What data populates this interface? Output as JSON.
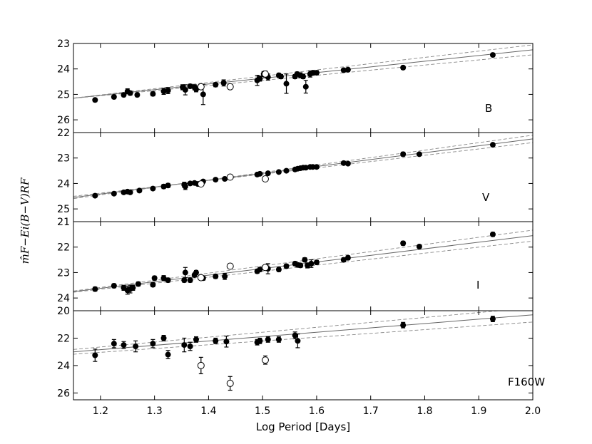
{
  "chart_data": {
    "type": "scatter",
    "xlabel": "Log Period [Days]",
    "ylabel": "m̂F−Ei(B−V)RF",
    "xlim": [
      1.15,
      2.0
    ],
    "x_ticks": [
      "1.2",
      "1.3",
      "1.4",
      "1.5",
      "1.6",
      "1.7",
      "1.8",
      "1.9",
      "2.0"
    ],
    "panels": [
      {
        "band": "B",
        "ylim": [
          26.5,
          23.0
        ],
        "y_ticks": [
          "23",
          "24",
          "25",
          "26"
        ],
        "fit": {
          "x": [
            1.15,
            2.0
          ],
          "y": [
            25.15,
            23.25
          ],
          "spread": 0.1
        },
        "filled": [
          {
            "x": 1.19,
            "y": 25.22,
            "e": 0.07
          },
          {
            "x": 1.225,
            "y": 25.1,
            "e": 0.07
          },
          {
            "x": 1.243,
            "y": 25.02,
            "e": 0.07
          },
          {
            "x": 1.25,
            "y": 24.88,
            "e": 0.1
          },
          {
            "x": 1.255,
            "y": 24.95,
            "e": 0.08
          },
          {
            "x": 1.268,
            "y": 25.02,
            "e": 0.07
          },
          {
            "x": 1.297,
            "y": 24.98,
            "e": 0.08
          },
          {
            "x": 1.317,
            "y": 24.88,
            "e": 0.12
          },
          {
            "x": 1.325,
            "y": 24.85,
            "e": 0.12
          },
          {
            "x": 1.352,
            "y": 24.72,
            "e": 0.1
          },
          {
            "x": 1.357,
            "y": 24.82,
            "e": 0.2
          },
          {
            "x": 1.366,
            "y": 24.68,
            "e": 0.08
          },
          {
            "x": 1.374,
            "y": 24.72,
            "e": 0.1
          },
          {
            "x": 1.377,
            "y": 24.8,
            "e": 0.1
          },
          {
            "x": 1.39,
            "y": 25.0,
            "e": 0.4
          },
          {
            "x": 1.413,
            "y": 24.62,
            "e": 0.08
          },
          {
            "x": 1.428,
            "y": 24.55,
            "e": 0.12
          },
          {
            "x": 1.49,
            "y": 24.45,
            "e": 0.2
          },
          {
            "x": 1.495,
            "y": 24.38,
            "e": 0.1
          },
          {
            "x": 1.502,
            "y": 24.2,
            "e": 0.1
          },
          {
            "x": 1.51,
            "y": 24.32,
            "e": 0.12
          },
          {
            "x": 1.53,
            "y": 24.25,
            "e": 0.08
          },
          {
            "x": 1.534,
            "y": 24.3,
            "e": 0.08
          },
          {
            "x": 1.544,
            "y": 24.58,
            "e": 0.38
          },
          {
            "x": 1.56,
            "y": 24.3,
            "e": 0.08
          },
          {
            "x": 1.564,
            "y": 24.2,
            "e": 0.08
          },
          {
            "x": 1.57,
            "y": 24.25,
            "e": 0.1
          },
          {
            "x": 1.575,
            "y": 24.3,
            "e": 0.08
          },
          {
            "x": 1.58,
            "y": 24.7,
            "e": 0.25
          },
          {
            "x": 1.588,
            "y": 24.2,
            "e": 0.12
          },
          {
            "x": 1.593,
            "y": 24.15,
            "e": 0.08
          },
          {
            "x": 1.6,
            "y": 24.15,
            "e": 0.08
          },
          {
            "x": 1.65,
            "y": 24.05,
            "e": 0.07
          },
          {
            "x": 1.658,
            "y": 24.03,
            "e": 0.07
          },
          {
            "x": 1.76,
            "y": 23.95,
            "e": 0.07
          },
          {
            "x": 1.926,
            "y": 23.45,
            "e": 0.07
          }
        ],
        "open": [
          {
            "x": 1.386,
            "y": 24.7,
            "e": 0.05
          },
          {
            "x": 1.44,
            "y": 24.7,
            "e": 0.07
          },
          {
            "x": 1.505,
            "y": 24.2,
            "e": 0.12
          }
        ]
      },
      {
        "band": "V",
        "ylim": [
          25.5,
          22.0
        ],
        "y_ticks": [
          "22",
          "23",
          "24",
          "25"
        ],
        "fit": {
          "x": [
            1.15,
            2.0
          ],
          "y": [
            24.55,
            22.25
          ],
          "spread": 0.05
        },
        "filled": [
          {
            "x": 1.19,
            "y": 24.48,
            "e": 0.06
          },
          {
            "x": 1.225,
            "y": 24.4,
            "e": 0.06
          },
          {
            "x": 1.243,
            "y": 24.35,
            "e": 0.06
          },
          {
            "x": 1.25,
            "y": 24.32,
            "e": 0.06
          },
          {
            "x": 1.255,
            "y": 24.35,
            "e": 0.06
          },
          {
            "x": 1.272,
            "y": 24.28,
            "e": 0.06
          },
          {
            "x": 1.297,
            "y": 24.2,
            "e": 0.06
          },
          {
            "x": 1.317,
            "y": 24.12,
            "e": 0.08
          },
          {
            "x": 1.325,
            "y": 24.08,
            "e": 0.08
          },
          {
            "x": 1.355,
            "y": 24.05,
            "e": 0.1
          },
          {
            "x": 1.357,
            "y": 24.12,
            "e": 0.12
          },
          {
            "x": 1.366,
            "y": 24.0,
            "e": 0.06
          },
          {
            "x": 1.374,
            "y": 23.98,
            "e": 0.06
          },
          {
            "x": 1.38,
            "y": 24.02,
            "e": 0.06
          },
          {
            "x": 1.39,
            "y": 23.92,
            "e": 0.06
          },
          {
            "x": 1.413,
            "y": 23.85,
            "e": 0.06
          },
          {
            "x": 1.43,
            "y": 23.82,
            "e": 0.06
          },
          {
            "x": 1.49,
            "y": 23.65,
            "e": 0.06
          },
          {
            "x": 1.495,
            "y": 23.62,
            "e": 0.06
          },
          {
            "x": 1.51,
            "y": 23.6,
            "e": 0.06
          },
          {
            "x": 1.53,
            "y": 23.55,
            "e": 0.06
          },
          {
            "x": 1.544,
            "y": 23.5,
            "e": 0.06
          },
          {
            "x": 1.56,
            "y": 23.45,
            "e": 0.06
          },
          {
            "x": 1.565,
            "y": 23.42,
            "e": 0.06
          },
          {
            "x": 1.57,
            "y": 23.4,
            "e": 0.06
          },
          {
            "x": 1.575,
            "y": 23.38,
            "e": 0.06
          },
          {
            "x": 1.58,
            "y": 23.38,
            "e": 0.06
          },
          {
            "x": 1.588,
            "y": 23.35,
            "e": 0.06
          },
          {
            "x": 1.593,
            "y": 23.35,
            "e": 0.06
          },
          {
            "x": 1.6,
            "y": 23.35,
            "e": 0.06
          },
          {
            "x": 1.65,
            "y": 23.2,
            "e": 0.06
          },
          {
            "x": 1.658,
            "y": 23.22,
            "e": 0.06
          },
          {
            "x": 1.76,
            "y": 22.85,
            "e": 0.08
          },
          {
            "x": 1.79,
            "y": 22.85,
            "e": 0.06
          },
          {
            "x": 1.926,
            "y": 22.48,
            "e": 0.06
          }
        ],
        "open": [
          {
            "x": 1.386,
            "y": 24.02,
            "e": 0.05
          },
          {
            "x": 1.44,
            "y": 23.75,
            "e": 0.05
          },
          {
            "x": 1.505,
            "y": 23.82,
            "e": 0.08
          }
        ]
      },
      {
        "band": "I",
        "ylim": [
          24.5,
          21.0
        ],
        "y_ticks": [
          "21",
          "22",
          "23",
          "24"
        ],
        "fit": {
          "x": [
            1.15,
            2.0
          ],
          "y": [
            23.75,
            21.55
          ],
          "spread": 0.12
        },
        "filled": [
          {
            "x": 1.19,
            "y": 23.65,
            "e": 0.08
          },
          {
            "x": 1.225,
            "y": 23.52,
            "e": 0.08
          },
          {
            "x": 1.243,
            "y": 23.6,
            "e": 0.1
          },
          {
            "x": 1.25,
            "y": 23.7,
            "e": 0.15
          },
          {
            "x": 1.255,
            "y": 23.65,
            "e": 0.15
          },
          {
            "x": 1.26,
            "y": 23.6,
            "e": 0.1
          },
          {
            "x": 1.27,
            "y": 23.45,
            "e": 0.08
          },
          {
            "x": 1.297,
            "y": 23.48,
            "e": 0.08
          },
          {
            "x": 1.3,
            "y": 23.22,
            "e": 0.08
          },
          {
            "x": 1.317,
            "y": 23.22,
            "e": 0.1
          },
          {
            "x": 1.325,
            "y": 23.3,
            "e": 0.08
          },
          {
            "x": 1.355,
            "y": 23.3,
            "e": 0.08
          },
          {
            "x": 1.357,
            "y": 23.0,
            "e": 0.2
          },
          {
            "x": 1.366,
            "y": 23.3,
            "e": 0.08
          },
          {
            "x": 1.374,
            "y": 23.1,
            "e": 0.08
          },
          {
            "x": 1.377,
            "y": 23.0,
            "e": 0.08
          },
          {
            "x": 1.39,
            "y": 23.22,
            "e": 0.08
          },
          {
            "x": 1.413,
            "y": 23.15,
            "e": 0.08
          },
          {
            "x": 1.43,
            "y": 23.15,
            "e": 0.12
          },
          {
            "x": 1.49,
            "y": 22.95,
            "e": 0.08
          },
          {
            "x": 1.495,
            "y": 22.88,
            "e": 0.08
          },
          {
            "x": 1.51,
            "y": 22.85,
            "e": 0.2
          },
          {
            "x": 1.53,
            "y": 22.88,
            "e": 0.08
          },
          {
            "x": 1.544,
            "y": 22.75,
            "e": 0.08
          },
          {
            "x": 1.56,
            "y": 22.65,
            "e": 0.08
          },
          {
            "x": 1.565,
            "y": 22.7,
            "e": 0.08
          },
          {
            "x": 1.57,
            "y": 22.72,
            "e": 0.08
          },
          {
            "x": 1.578,
            "y": 22.5,
            "e": 0.08
          },
          {
            "x": 1.583,
            "y": 22.72,
            "e": 0.1
          },
          {
            "x": 1.59,
            "y": 22.65,
            "e": 0.15
          },
          {
            "x": 1.6,
            "y": 22.6,
            "e": 0.08
          },
          {
            "x": 1.65,
            "y": 22.5,
            "e": 0.08
          },
          {
            "x": 1.658,
            "y": 22.42,
            "e": 0.08
          },
          {
            "x": 1.76,
            "y": 21.85,
            "e": 0.08
          },
          {
            "x": 1.79,
            "y": 21.98,
            "e": 0.06
          },
          {
            "x": 1.926,
            "y": 21.5,
            "e": 0.08
          }
        ],
        "open": [
          {
            "x": 1.386,
            "y": 23.2,
            "e": 0.05
          },
          {
            "x": 1.44,
            "y": 22.75,
            "e": 0.1
          },
          {
            "x": 1.505,
            "y": 22.8,
            "e": 0.08
          }
        ]
      },
      {
        "band": "F160W",
        "ylim": [
          26.5,
          20.0
        ],
        "y_ticks": [
          "20",
          "22",
          "24",
          "26"
        ],
        "fit": {
          "x": [
            1.15,
            2.0
          ],
          "y": [
            23.0,
            20.3
          ],
          "spread": 0.35
        },
        "filled": [
          {
            "x": 1.19,
            "y": 23.25,
            "e": 0.45
          },
          {
            "x": 1.225,
            "y": 22.4,
            "e": 0.3
          },
          {
            "x": 1.243,
            "y": 22.5,
            "e": 0.25
          },
          {
            "x": 1.265,
            "y": 22.6,
            "e": 0.4
          },
          {
            "x": 1.297,
            "y": 22.4,
            "e": 0.3
          },
          {
            "x": 1.317,
            "y": 22.0,
            "e": 0.2
          },
          {
            "x": 1.325,
            "y": 23.2,
            "e": 0.3
          },
          {
            "x": 1.355,
            "y": 22.5,
            "e": 0.5
          },
          {
            "x": 1.366,
            "y": 22.6,
            "e": 0.3
          },
          {
            "x": 1.377,
            "y": 22.1,
            "e": 0.2
          },
          {
            "x": 1.413,
            "y": 22.2,
            "e": 0.2
          },
          {
            "x": 1.433,
            "y": 22.25,
            "e": 0.4
          },
          {
            "x": 1.49,
            "y": 22.3,
            "e": 0.2
          },
          {
            "x": 1.495,
            "y": 22.2,
            "e": 0.2
          },
          {
            "x": 1.51,
            "y": 22.1,
            "e": 0.2
          },
          {
            "x": 1.53,
            "y": 22.1,
            "e": 0.2
          },
          {
            "x": 1.56,
            "y": 21.8,
            "e": 0.25
          },
          {
            "x": 1.565,
            "y": 22.2,
            "e": 0.5
          },
          {
            "x": 1.76,
            "y": 21.05,
            "e": 0.2
          },
          {
            "x": 1.926,
            "y": 20.6,
            "e": 0.2
          }
        ],
        "open": [
          {
            "x": 1.386,
            "y": 24.0,
            "e": 0.6
          },
          {
            "x": 1.44,
            "y": 25.3,
            "e": 0.5
          },
          {
            "x": 1.505,
            "y": 23.6,
            "e": 0.3
          }
        ]
      }
    ]
  }
}
